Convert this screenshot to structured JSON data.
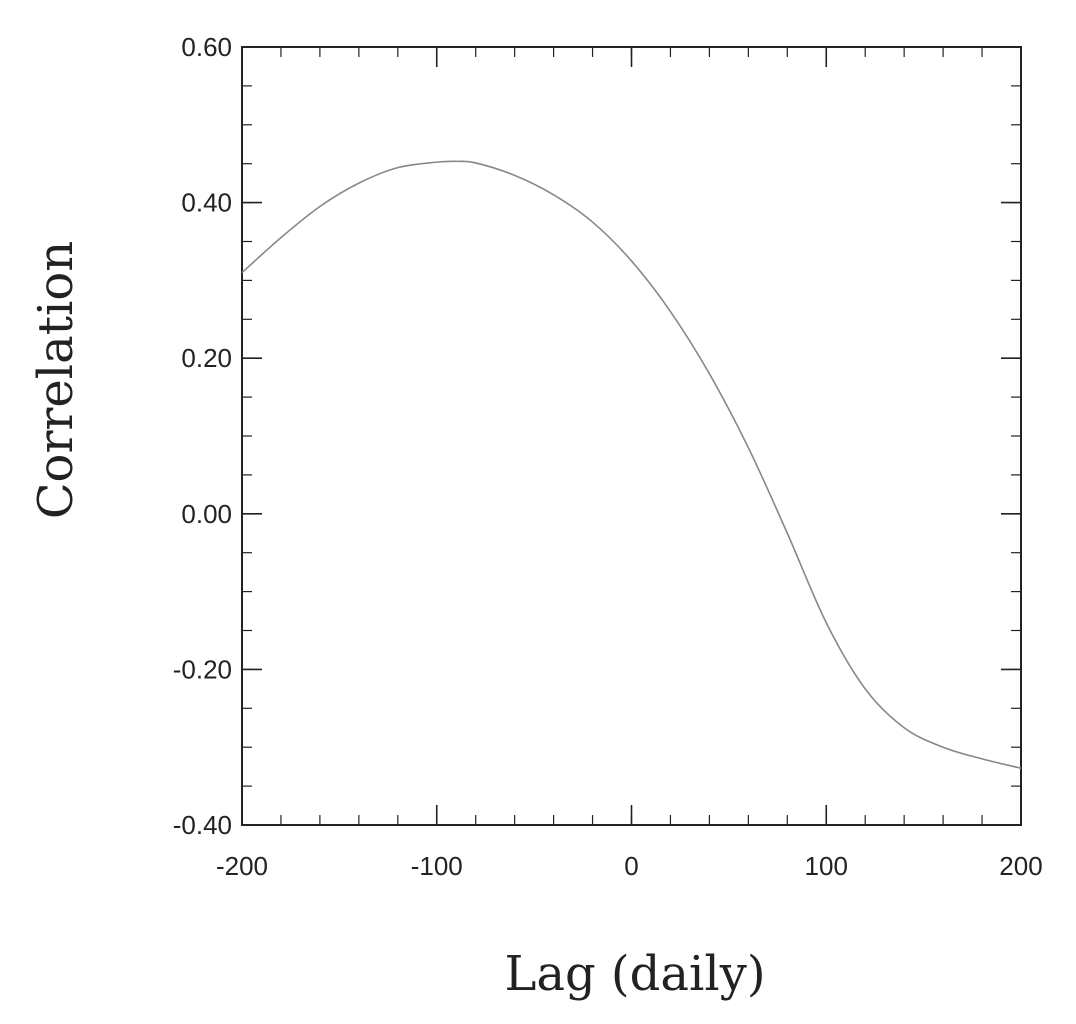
{
  "chart_data": {
    "type": "line",
    "xlabel": "Lag (daily)",
    "ylabel": "Correlation",
    "xlim": [
      -200,
      200
    ],
    "ylim": [
      -0.4,
      0.6
    ],
    "x_ticks": [
      -200,
      -100,
      0,
      100,
      200
    ],
    "x_tick_labels": [
      "-200",
      "-100",
      "0",
      "100",
      "200"
    ],
    "y_ticks": [
      -0.4,
      -0.2,
      0.0,
      0.2,
      0.4,
      0.6
    ],
    "y_tick_labels": [
      "-0.40",
      "-0.20",
      "0.00",
      "0.20",
      "0.40",
      "0.60"
    ],
    "x_minor_step": 20,
    "y_minor_step": 0.05,
    "grid": false,
    "line_color": "#888888",
    "series": [
      {
        "x": [
          -200,
          -180,
          -160,
          -140,
          -120,
          -100,
          -90,
          -80,
          -60,
          -40,
          -20,
          0,
          20,
          40,
          60,
          80,
          100,
          120,
          140,
          160,
          180,
          200
        ],
        "y": [
          0.31,
          0.355,
          0.395,
          0.425,
          0.445,
          0.452,
          0.453,
          0.451,
          0.435,
          0.41,
          0.375,
          0.325,
          0.26,
          0.18,
          0.085,
          -0.025,
          -0.14,
          -0.225,
          -0.275,
          -0.3,
          -0.315,
          -0.327
        ]
      }
    ]
  }
}
